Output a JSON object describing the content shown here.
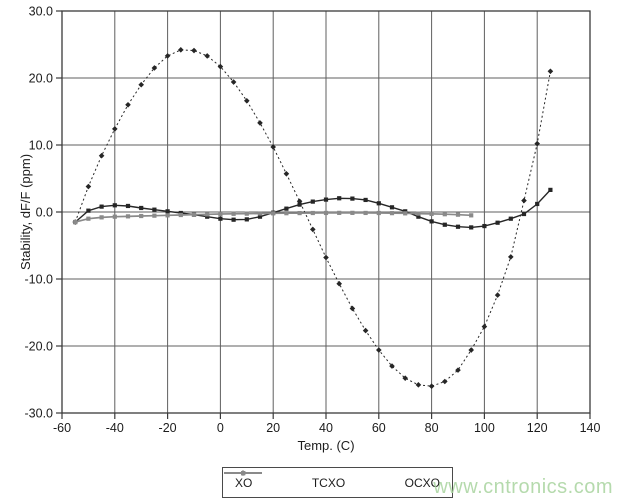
{
  "chart_data": {
    "type": "line",
    "title": "",
    "xlabel": "Temp. (C)",
    "ylabel": "Stability, dF/F (ppm)",
    "xlim": [
      -60,
      140
    ],
    "ylim": [
      -30,
      30
    ],
    "grid": true,
    "legend_position": "bottom-center",
    "axis_color": "#3a3a3a",
    "grid_color": "#5f5f5f",
    "text_color": "#1c1c1c",
    "x_ticks": [
      -60,
      -40,
      -20,
      0,
      20,
      40,
      60,
      80,
      100,
      120,
      140
    ],
    "x_tick_labels": [
      "-60",
      "-40",
      "-20",
      "0",
      "20",
      "40",
      "60",
      "80",
      "100",
      "120",
      "140"
    ],
    "y_ticks": [
      30,
      20,
      10,
      0,
      -10,
      -20,
      -30
    ],
    "y_tick_labels": [
      "30.0",
      "20.0",
      "10.0",
      "0.0",
      "-10.0",
      "-20.0",
      "-30.0"
    ],
    "series": [
      {
        "name": "XO",
        "line_style": "dashed",
        "marker": "diamond",
        "color": "#262626",
        "x": [
          -55,
          -50,
          -45,
          -40,
          -35,
          -30,
          -25,
          -20,
          -15,
          -10,
          -5,
          0,
          5,
          10,
          15,
          20,
          25,
          30,
          35,
          40,
          45,
          50,
          55,
          60,
          65,
          70,
          75,
          80,
          85,
          90,
          95,
          100,
          105,
          110,
          115,
          120,
          125
        ],
        "values": [
          -1.5,
          3.8,
          8.4,
          12.4,
          16.0,
          19.0,
          21.5,
          23.3,
          24.2,
          24.1,
          23.3,
          21.7,
          19.4,
          16.6,
          13.3,
          9.7,
          5.7,
          1.6,
          -2.6,
          -6.8,
          -10.7,
          -14.4,
          -17.7,
          -20.6,
          -23.0,
          -24.8,
          -25.8,
          -26.0,
          -25.3,
          -23.6,
          -20.6,
          -17.1,
          -12.4,
          -6.7,
          1.7,
          10.2,
          21.0
        ]
      },
      {
        "name": "TCXO",
        "line_style": "solid",
        "marker": "square",
        "color": "#262626",
        "x": [
          -55,
          -50,
          -45,
          -40,
          -35,
          -30,
          -25,
          -20,
          -15,
          -10,
          -5,
          0,
          5,
          10,
          15,
          20,
          25,
          30,
          35,
          40,
          45,
          50,
          55,
          60,
          65,
          70,
          75,
          80,
          85,
          90,
          95,
          100,
          105,
          110,
          115,
          120,
          125
        ],
        "values": [
          -1.5,
          0.2,
          0.8,
          1.0,
          0.9,
          0.6,
          0.35,
          0.1,
          -0.15,
          -0.4,
          -0.7,
          -1.0,
          -1.15,
          -1.1,
          -0.7,
          -0.1,
          0.5,
          1.1,
          1.55,
          1.85,
          2.05,
          2.0,
          1.8,
          1.3,
          0.7,
          0.1,
          -0.7,
          -1.4,
          -1.9,
          -2.2,
          -2.3,
          -2.1,
          -1.6,
          -1.0,
          -0.3,
          1.2,
          3.3
        ]
      },
      {
        "name": "OCXO",
        "line_style": "solid",
        "marker": "square",
        "color": "#8a8a8a",
        "x": [
          -55,
          -50,
          -45,
          -40,
          -35,
          -30,
          -25,
          -20,
          -15,
          -10,
          -5,
          0,
          5,
          10,
          15,
          20,
          25,
          30,
          35,
          40,
          45,
          50,
          55,
          60,
          65,
          70,
          75,
          80,
          85,
          90,
          95
        ],
        "values": [
          -1.5,
          -1.0,
          -0.8,
          -0.7,
          -0.65,
          -0.6,
          -0.55,
          -0.5,
          -0.45,
          -0.4,
          -0.35,
          -0.3,
          -0.27,
          -0.25,
          -0.22,
          -0.2,
          -0.18,
          -0.16,
          -0.15,
          -0.14,
          -0.13,
          -0.13,
          -0.14,
          -0.15,
          -0.17,
          -0.2,
          -0.24,
          -0.28,
          -0.33,
          -0.4,
          -0.5
        ]
      }
    ]
  },
  "watermark": {
    "text": "www.cntronics.com",
    "color": "#a9d49f"
  }
}
